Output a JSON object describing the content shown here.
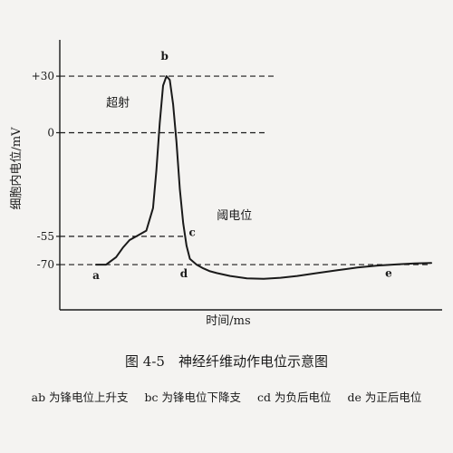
{
  "chart_data": {
    "type": "line",
    "xlabel": "时间/ms",
    "ylabel": "细胞内电位/mV",
    "yticks": [
      {
        "value": 30,
        "label": "+30"
      },
      {
        "value": 0,
        "label": "0"
      },
      {
        "value": -55,
        "label": "-55"
      },
      {
        "value": -70,
        "label": "-70"
      }
    ],
    "ylim": [
      -94,
      56
    ],
    "xlim": [
      0,
      100
    ],
    "series": [
      {
        "x": [
          0,
          3,
          6,
          8,
          10,
          12,
          15,
          17,
          18,
          19,
          20,
          21,
          22,
          23,
          24,
          25,
          26,
          27,
          28,
          30,
          32,
          34,
          36,
          40,
          45,
          50,
          55,
          60,
          66,
          72,
          78,
          84,
          90,
          95,
          100
        ],
        "y": [
          -70,
          -70,
          -66,
          -61,
          -57,
          -55,
          -52,
          -40,
          -20,
          5,
          25,
          30,
          28,
          15,
          -5,
          -30,
          -48,
          -60,
          -67,
          -70,
          -72,
          -73.5,
          -74.5,
          -76,
          -77.3,
          -77.5,
          -77,
          -76,
          -74.5,
          -73,
          -71.5,
          -70.5,
          -69.8,
          -69.4,
          -69.1
        ]
      }
    ],
    "points": [
      {
        "label": "a",
        "x": 0,
        "y": -70
      },
      {
        "label": "b",
        "x": 21,
        "y": 30
      },
      {
        "label": "c",
        "x": 26,
        "y": -48
      },
      {
        "label": "d",
        "x": 30,
        "y": -70
      },
      {
        "label": "e",
        "x": 90,
        "y": -69.8
      }
    ],
    "annotations": [
      {
        "text": "超射",
        "x": 3,
        "y": 14
      },
      {
        "text": "阈电位",
        "x": 36,
        "y": -46
      }
    ],
    "dashed_lines": [
      30,
      0,
      -55,
      -70
    ]
  },
  "caption": "图 4-5　神经纤维动作电位示意图",
  "legend_items": [
    "ab 为锋电位上升支",
    "bc 为锋电位下降支",
    "cd 为负后电位",
    "de 为正后电位"
  ]
}
